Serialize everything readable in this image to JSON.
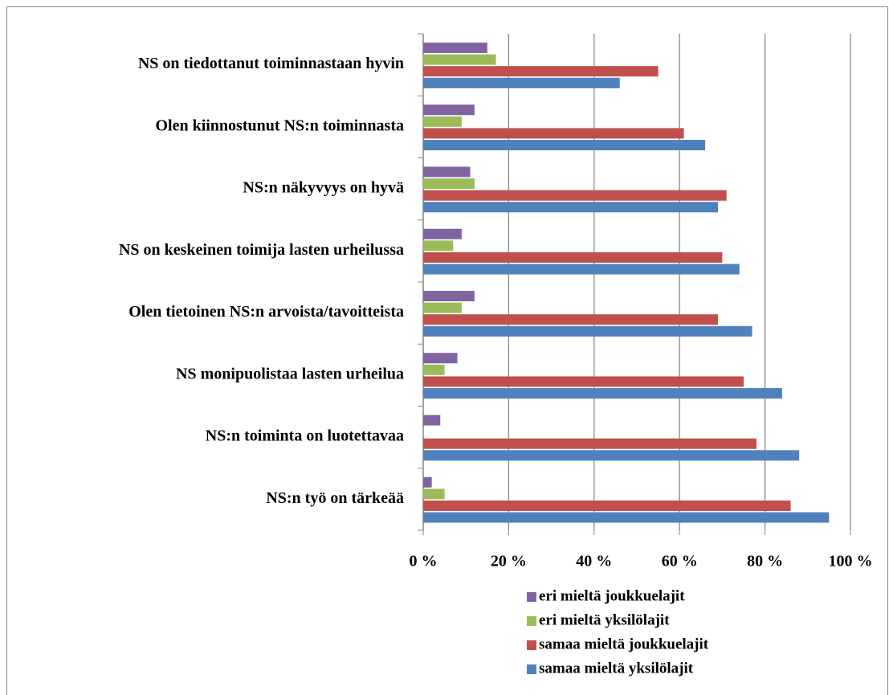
{
  "chart_data": {
    "type": "bar",
    "orientation": "horizontal",
    "categories": [
      "NS on tiedottanut toiminnastaan hyvin",
      "Olen kiinnostunut NS:n toiminnasta",
      "NS:n näkyvyys on hyvä",
      "NS on keskeinen toimija lasten urheilussa",
      "Olen tietoinen NS:n arvoista/tavoitteista",
      "NS monipuolistaa lasten urheilua",
      "NS:n toiminta on luotettavaa",
      "NS:n työ on tärkeää"
    ],
    "series": [
      {
        "name": "eri mieltä joukkuelajit",
        "color": "#8064a2",
        "values": [
          15,
          12,
          11,
          9,
          12,
          8,
          4,
          2
        ]
      },
      {
        "name": "eri mieltä yksilölajit",
        "color": "#9bbb59",
        "values": [
          17,
          9,
          12,
          7,
          9,
          5,
          0,
          5
        ]
      },
      {
        "name": "samaa mieltä joukkuelajit",
        "color": "#c0504d",
        "values": [
          55,
          61,
          71,
          70,
          69,
          75,
          78,
          86
        ]
      },
      {
        "name": "samaa mieltä yksilölajit",
        "color": "#4f81bd",
        "values": [
          46,
          66,
          69,
          74,
          77,
          84,
          88,
          95
        ]
      }
    ],
    "xlim": [
      0,
      100
    ],
    "xticks": [
      {
        "value": 0,
        "label": "0 %"
      },
      {
        "value": 20,
        "label": "20 %"
      },
      {
        "value": 40,
        "label": "40 %"
      },
      {
        "value": 60,
        "label": "60 %"
      },
      {
        "value": 80,
        "label": "80 %"
      },
      {
        "value": 100,
        "label": "100 %"
      }
    ],
    "grid": true,
    "legend": "bottom"
  }
}
